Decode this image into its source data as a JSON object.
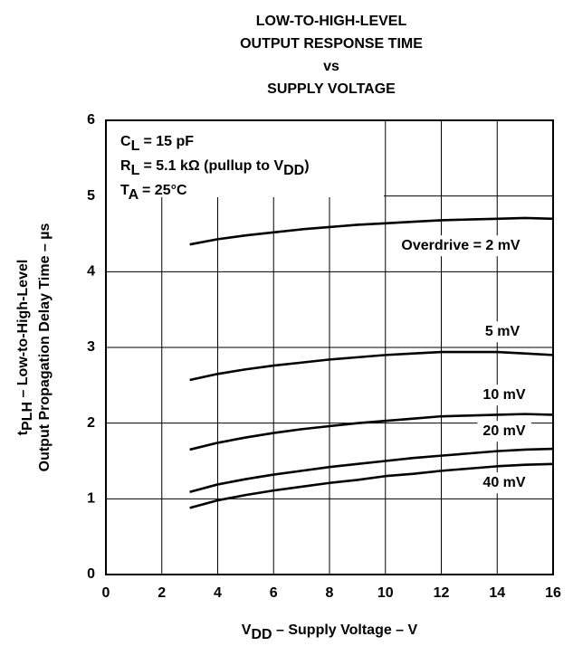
{
  "chart_data": {
    "type": "line",
    "title": [
      "LOW-TO-HIGH-LEVEL",
      "OUTPUT RESPONSE TIME",
      "vs",
      "SUPPLY VOLTAGE"
    ],
    "x_label": [
      {
        "text": "V"
      },
      {
        "sub": "DD"
      },
      {
        "text": " – Supply Voltage – V"
      }
    ],
    "y_label": [
      [
        {
          "text": "t"
        },
        {
          "sub": "PLH"
        },
        {
          "text": " – Low-to-High-Level"
        }
      ],
      [
        {
          "text": "Output Propagation Delay Time – µs"
        }
      ]
    ],
    "annotations": [
      [
        {
          "text": "C"
        },
        {
          "sub": "L"
        },
        {
          "text": " = 15 pF"
        }
      ],
      [
        {
          "text": "R"
        },
        {
          "sub": "L"
        },
        {
          "text": " = 5.1 kΩ (pullup to V"
        },
        {
          "sub": "DD"
        },
        {
          "text": ")"
        }
      ],
      [
        {
          "text": "T"
        },
        {
          "sub": "A"
        },
        {
          "text": " =  25°C"
        }
      ]
    ],
    "x": [
      3,
      4,
      5,
      6,
      7,
      8,
      9,
      10,
      11,
      12,
      13,
      14,
      15,
      16
    ],
    "series": [
      {
        "name": "Overdrive = 2 mV",
        "color": "#000000",
        "values": [
          4.36,
          4.43,
          4.48,
          4.52,
          4.56,
          4.59,
          4.62,
          4.64,
          4.66,
          4.68,
          4.69,
          4.7,
          4.71,
          4.7
        ]
      },
      {
        "name": "5 mV",
        "color": "#000000",
        "values": [
          2.57,
          2.65,
          2.71,
          2.76,
          2.8,
          2.84,
          2.87,
          2.9,
          2.92,
          2.94,
          2.94,
          2.94,
          2.92,
          2.9
        ]
      },
      {
        "name": "10 mV",
        "color": "#000000",
        "values": [
          1.65,
          1.74,
          1.81,
          1.87,
          1.92,
          1.96,
          2.0,
          2.03,
          2.06,
          2.09,
          2.1,
          2.11,
          2.12,
          2.11
        ]
      },
      {
        "name": "20 mV",
        "color": "#000000",
        "values": [
          1.09,
          1.19,
          1.26,
          1.32,
          1.37,
          1.42,
          1.46,
          1.5,
          1.54,
          1.57,
          1.6,
          1.63,
          1.65,
          1.66
        ]
      },
      {
        "name": "40 mV",
        "color": "#000000",
        "values": [
          0.88,
          0.98,
          1.05,
          1.11,
          1.16,
          1.21,
          1.25,
          1.3,
          1.33,
          1.37,
          1.4,
          1.43,
          1.45,
          1.46
        ]
      }
    ],
    "xlim": [
      0,
      16
    ],
    "xticks": [
      0,
      2,
      4,
      6,
      8,
      10,
      12,
      14,
      16
    ],
    "ylim": [
      0,
      6
    ],
    "yticks": [
      0,
      1,
      2,
      3,
      4,
      5,
      6
    ],
    "grid": true
  }
}
